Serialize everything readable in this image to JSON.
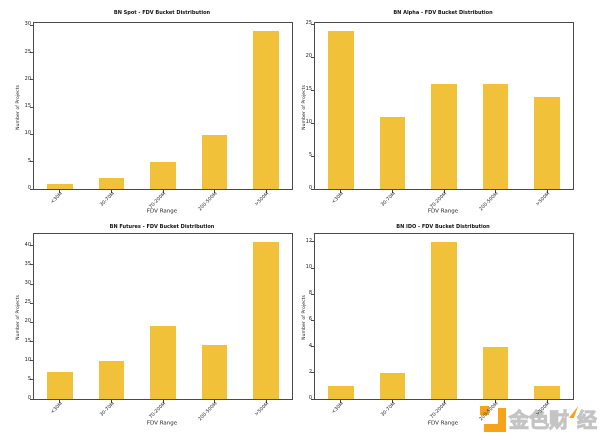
{
  "figure": {
    "background": "#ffffff",
    "bar_color": "#F1C13A",
    "xlabel": "FDV Range",
    "ylabel": "Number of Projects"
  },
  "chart_data": [
    {
      "type": "bar",
      "title": "BN Spot - FDV Bucket Distribution",
      "categories": [
        "<30M",
        "30-70M",
        "70-200M",
        "200-500M",
        ">500M"
      ],
      "values": [
        1,
        2,
        5,
        10,
        29
      ],
      "xlabel": "FDV Range",
      "ylabel": "Number of Projects",
      "yticks": [
        0,
        5,
        10,
        15,
        20,
        25,
        30
      ],
      "ylim": [
        0,
        30.45
      ]
    },
    {
      "type": "bar",
      "title": "BN Alpha - FDV Bucket Distribution",
      "categories": [
        "<30M",
        "30-70M",
        "70-200M",
        "200-500M",
        ">500M"
      ],
      "values": [
        24,
        11,
        16,
        16,
        14
      ],
      "xlabel": "FDV Range",
      "ylabel": "Number of Projects",
      "yticks": [
        0,
        5,
        10,
        15,
        20,
        25
      ],
      "ylim": [
        0,
        25.2
      ]
    },
    {
      "type": "bar",
      "title": "BN Futures - FDV Bucket Distribution",
      "categories": [
        "<30M",
        "30-70M",
        "70-200M",
        "200-500M",
        ">500M"
      ],
      "values": [
        7,
        10,
        19,
        14,
        41
      ],
      "xlabel": "FDV Range",
      "ylabel": "Number of Projects",
      "yticks": [
        0,
        5,
        10,
        15,
        20,
        25,
        30,
        35,
        40
      ],
      "ylim": [
        0,
        43.05
      ]
    },
    {
      "type": "bar",
      "title": "BN IDO - FDV Bucket Distribution",
      "categories": [
        "<30M",
        "30-70M",
        "70-200M",
        "200-500M",
        ">500M"
      ],
      "values": [
        1,
        2,
        12,
        4,
        1
      ],
      "xlabel": "FDV Range",
      "ylabel": "Number of Projects",
      "yticks": [
        0,
        2,
        4,
        6,
        8,
        10,
        12
      ],
      "ylim": [
        0,
        12.6
      ]
    }
  ],
  "watermark": {
    "text_main": "金色财",
    "text_tail": "经",
    "logo": "jinse-finance-logo"
  }
}
